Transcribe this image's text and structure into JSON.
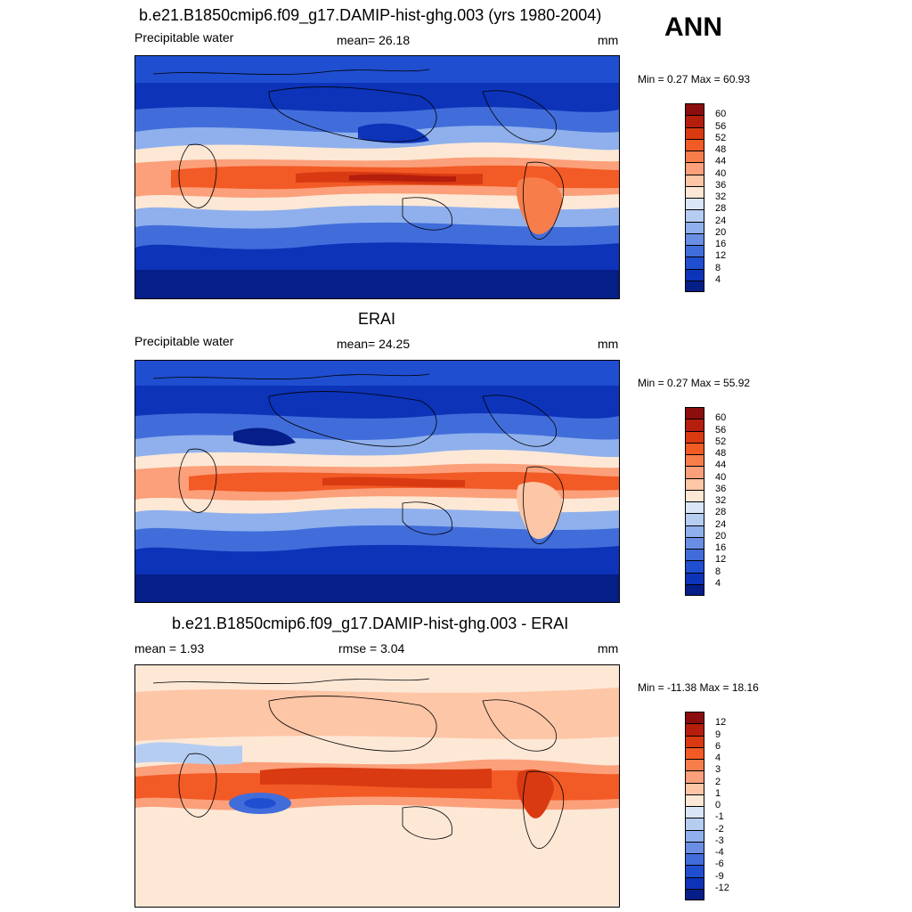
{
  "top_title": "b.e21.B1850cmip6.f09_g17.DAMIP-hist-ghg.003 (yrs 1980-2004)",
  "season": "ANN",
  "panels": [
    {
      "title": "",
      "left_label": "Precipitable water",
      "center_label": "mean=  26.18",
      "right_label": "mm",
      "minmax": "Min =   0.27 Max =  60.93",
      "kind": "abs"
    },
    {
      "title": "ERAI",
      "left_label": "Precipitable water",
      "center_label": "mean=  24.25",
      "right_label": "mm",
      "minmax": "Min =   0.27 Max =  55.92",
      "kind": "abs"
    },
    {
      "title": "b.e21.B1850cmip6.f09_g17.DAMIP-hist-ghg.003 - ERAI",
      "left_label": "mean =   1.93",
      "center_label": "rmse =   3.04",
      "right_label": "mm",
      "minmax": "Min = -11.38 Max =  18.16",
      "kind": "diff"
    }
  ],
  "colorbar_abs": {
    "labels": [
      "60",
      "56",
      "52",
      "48",
      "44",
      "40",
      "36",
      "32",
      "28",
      "24",
      "20",
      "16",
      "12",
      "8",
      "4"
    ],
    "colors": [
      "#8b0d0d",
      "#b51e0c",
      "#d93a12",
      "#f25a26",
      "#f77d4b",
      "#fba07a",
      "#fdc6a6",
      "#fde8d6",
      "#d9e6f8",
      "#b6cdf2",
      "#8fb0ec",
      "#6a8ee4",
      "#416ddb",
      "#1f4fd0",
      "#0c33b8",
      "#061e88"
    ]
  },
  "colorbar_diff": {
    "labels": [
      "12",
      "9",
      "6",
      "4",
      "3",
      "2",
      "1",
      "0",
      "-1",
      "-2",
      "-3",
      "-4",
      "-6",
      "-9",
      "-12"
    ],
    "colors": [
      "#8b0d0d",
      "#b51e0c",
      "#d93a12",
      "#f25a26",
      "#f77d4b",
      "#fba07a",
      "#fdc6a6",
      "#fde8d6",
      "#d9e6f8",
      "#b6cdf2",
      "#8fb0ec",
      "#6a8ee4",
      "#416ddb",
      "#1f4fd0",
      "#0c33b8",
      "#061e88"
    ]
  }
}
